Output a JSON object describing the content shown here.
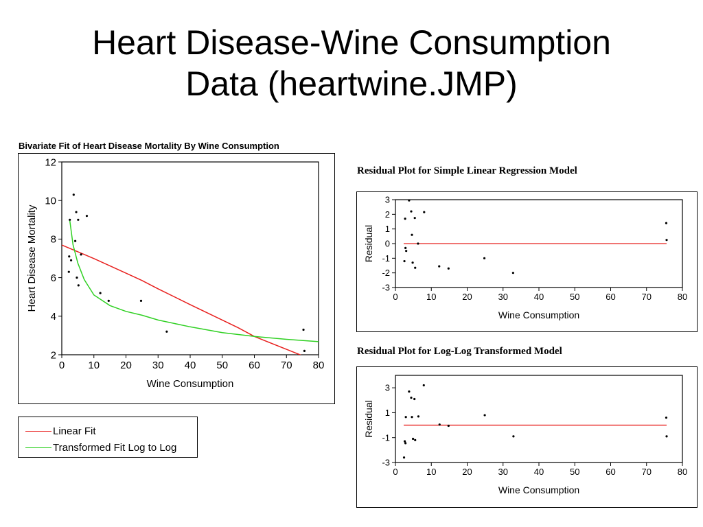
{
  "slide": {
    "title_line1": "Heart Disease-Wine Consumption",
    "title_line2": "Data (heartwine.JMP)"
  },
  "chart_data": [
    {
      "type": "scatter",
      "title": "Bivariate Fit of Heart Disease Mortality By Wine Consumption",
      "xlabel": "Wine Consumption",
      "ylabel": "Heart Disease Mortality",
      "xlim": [
        0,
        80
      ],
      "ylim": [
        2,
        12
      ],
      "xticks": [
        0,
        10,
        20,
        30,
        40,
        50,
        60,
        70,
        80
      ],
      "yticks": [
        2,
        4,
        6,
        8,
        10,
        12
      ],
      "points": [
        {
          "x": 2.5,
          "y": 9.0
        },
        {
          "x": 2.3,
          "y": 7.1
        },
        {
          "x": 2.9,
          "y": 6.9
        },
        {
          "x": 2.2,
          "y": 6.3
        },
        {
          "x": 3.7,
          "y": 10.3
        },
        {
          "x": 4.2,
          "y": 7.9
        },
        {
          "x": 4.5,
          "y": 9.4
        },
        {
          "x": 4.7,
          "y": 6.0
        },
        {
          "x": 5.1,
          "y": 9.0
        },
        {
          "x": 5.2,
          "y": 5.6
        },
        {
          "x": 6.0,
          "y": 7.2
        },
        {
          "x": 7.8,
          "y": 9.2
        },
        {
          "x": 12.0,
          "y": 5.2
        },
        {
          "x": 14.6,
          "y": 4.8
        },
        {
          "x": 24.7,
          "y": 4.8
        },
        {
          "x": 32.7,
          "y": 3.2
        },
        {
          "x": 75.3,
          "y": 3.3
        },
        {
          "x": 75.6,
          "y": 2.2
        }
      ],
      "series": [
        {
          "name": "Linear Fit",
          "color": "#e8201e",
          "x": [
            0,
            10,
            20,
            25,
            30,
            40,
            50,
            55,
            60,
            70,
            75
          ],
          "y": [
            7.69,
            6.99,
            6.23,
            5.85,
            5.42,
            4.6,
            3.8,
            3.4,
            2.95,
            2.28,
            1.95
          ]
        },
        {
          "name": "Transformed Fit Log to Log",
          "color": "#2fd022",
          "x": [
            2.5,
            3.5,
            5,
            7,
            10,
            15,
            20,
            25,
            30,
            40,
            50,
            60,
            70,
            80
          ],
          "y": [
            8.95,
            7.7,
            6.75,
            5.9,
            5.1,
            4.55,
            4.25,
            4.05,
            3.8,
            3.45,
            3.15,
            2.95,
            2.8,
            2.68
          ]
        }
      ],
      "legend": "below"
    },
    {
      "type": "scatter",
      "title": "Residual Plot for Simple Linear Regression Model",
      "xlabel": "Wine Consumption",
      "ylabel": "Residual",
      "xlim": [
        0,
        80
      ],
      "ylim": [
        -3,
        3
      ],
      "xticks": [
        0,
        10,
        20,
        30,
        40,
        50,
        60,
        70,
        80
      ],
      "yticks": [
        -3,
        -2,
        -1,
        0,
        1,
        2,
        3
      ],
      "zero_line_color": "#e8201e",
      "points": [
        {
          "x": 2.5,
          "y": -1.2
        },
        {
          "x": 2.7,
          "y": 1.7
        },
        {
          "x": 2.8,
          "y": -0.3
        },
        {
          "x": 3.0,
          "y": -0.5
        },
        {
          "x": 3.8,
          "y": 2.95
        },
        {
          "x": 4.4,
          "y": 2.2
        },
        {
          "x": 4.6,
          "y": 0.6
        },
        {
          "x": 4.8,
          "y": -1.3
        },
        {
          "x": 5.4,
          "y": 1.75
        },
        {
          "x": 5.5,
          "y": -1.65
        },
        {
          "x": 6.3,
          "y": 0.0
        },
        {
          "x": 8.0,
          "y": 2.15
        },
        {
          "x": 12.2,
          "y": -1.55
        },
        {
          "x": 14.8,
          "y": -1.7
        },
        {
          "x": 24.8,
          "y": -1.0
        },
        {
          "x": 32.8,
          "y": -2.0
        },
        {
          "x": 75.5,
          "y": 1.4
        },
        {
          "x": 75.6,
          "y": 0.25
        }
      ]
    },
    {
      "type": "scatter",
      "title": "Residual Plot for Log-Log Transformed Model",
      "xlabel": "Wine Consumption",
      "ylabel": "Residual",
      "xlim": [
        0,
        80
      ],
      "ylim": [
        -3,
        4
      ],
      "xticks": [
        0,
        10,
        20,
        30,
        40,
        50,
        60,
        70,
        80
      ],
      "yticks": [
        -3,
        -1,
        1,
        3
      ],
      "zero_line_color": "#e8201e",
      "points": [
        {
          "x": 2.4,
          "y": -2.6
        },
        {
          "x": 2.6,
          "y": -1.3
        },
        {
          "x": 2.8,
          "y": -1.45
        },
        {
          "x": 2.9,
          "y": 0.65
        },
        {
          "x": 3.8,
          "y": 2.7
        },
        {
          "x": 4.4,
          "y": 2.2
        },
        {
          "x": 4.6,
          "y": 0.65
        },
        {
          "x": 4.9,
          "y": -1.1
        },
        {
          "x": 5.3,
          "y": 2.1
        },
        {
          "x": 5.5,
          "y": -1.2
        },
        {
          "x": 6.4,
          "y": 0.7
        },
        {
          "x": 7.9,
          "y": 3.2
        },
        {
          "x": 12.3,
          "y": 0.05
        },
        {
          "x": 14.8,
          "y": -0.05
        },
        {
          "x": 24.9,
          "y": 0.8
        },
        {
          "x": 32.9,
          "y": -0.9
        },
        {
          "x": 75.5,
          "y": 0.6
        },
        {
          "x": 75.6,
          "y": -0.9
        }
      ]
    }
  ]
}
